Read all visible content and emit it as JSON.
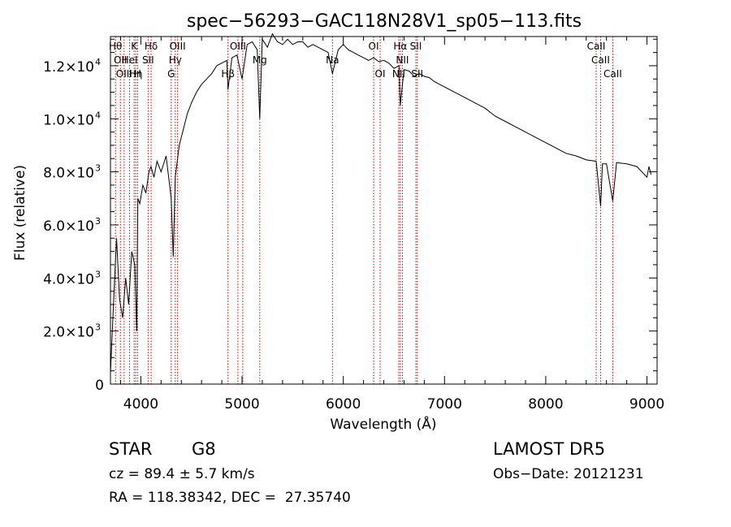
{
  "chart_data": {
    "type": "line",
    "title": "spec−56293−GAC118N28V1_sp05−113.fits",
    "xlabel": "Wavelength (Å)",
    "ylabel": "Flux (relative)",
    "xlim": [
      3700,
      9100
    ],
    "ylim": [
      0,
      13100
    ],
    "x_ticks": [
      {
        "value": 4000,
        "label": "4000"
      },
      {
        "value": 5000,
        "label": "5000"
      },
      {
        "value": 6000,
        "label": "6000"
      },
      {
        "value": 7000,
        "label": "7000"
      },
      {
        "value": 8000,
        "label": "8000"
      },
      {
        "value": 9000,
        "label": "9000"
      }
    ],
    "y_ticks": [
      {
        "value": 0,
        "label": "0",
        "exp": ""
      },
      {
        "value": 2000,
        "label": "2.0×10",
        "exp": "3"
      },
      {
        "value": 4000,
        "label": "4.0×10",
        "exp": "3"
      },
      {
        "value": 6000,
        "label": "6.0×10",
        "exp": "3"
      },
      {
        "value": 8000,
        "label": "8.0×10",
        "exp": "3"
      },
      {
        "value": 10000,
        "label": "1.0×10",
        "exp": "4"
      },
      {
        "value": 12000,
        "label": "1.2×10",
        "exp": "4"
      }
    ],
    "spectrum": {
      "x": [
        3700,
        3730,
        3760,
        3790,
        3820,
        3850,
        3880,
        3910,
        3940,
        3960,
        3970,
        3990,
        4020,
        4050,
        4080,
        4100,
        4130,
        4160,
        4200,
        4250,
        4300,
        4320,
        4340,
        4380,
        4420,
        4460,
        4500,
        4550,
        4600,
        4650,
        4700,
        4750,
        4800,
        4850,
        4861,
        4900,
        4950,
        5000,
        5050,
        5100,
        5150,
        5175,
        5200,
        5250,
        5300,
        5350,
        5400,
        5450,
        5500,
        5550,
        5600,
        5650,
        5700,
        5750,
        5800,
        5850,
        5893,
        5950,
        6000,
        6050,
        6100,
        6150,
        6200,
        6250,
        6300,
        6350,
        6400,
        6450,
        6500,
        6550,
        6563,
        6600,
        6650,
        6700,
        6750,
        6800,
        6850,
        6900,
        6950,
        7000,
        7100,
        7200,
        7300,
        7400,
        7500,
        7600,
        7700,
        7800,
        7900,
        8000,
        8100,
        8200,
        8300,
        8400,
        8498,
        8542,
        8560,
        8600,
        8662,
        8700,
        8800,
        8900,
        9000,
        9020,
        9040
      ],
      "y": [
        400,
        3000,
        5500,
        3200,
        2500,
        4000,
        3000,
        5000,
        4500,
        2000,
        7000,
        6800,
        7500,
        7200,
        8000,
        8200,
        7800,
        8400,
        8000,
        8600,
        7000,
        4800,
        7800,
        9000,
        9600,
        10200,
        10600,
        11000,
        11300,
        11500,
        11700,
        12000,
        12100,
        12200,
        11100,
        12300,
        12400,
        11500,
        12800,
        12900,
        12600,
        10000,
        13000,
        12700,
        13200,
        12900,
        12800,
        13000,
        12800,
        12900,
        12900,
        12700,
        12800,
        12700,
        12600,
        12500,
        11700,
        12600,
        12800,
        12600,
        12500,
        12400,
        12300,
        12200,
        12300,
        12150,
        12200,
        12100,
        11900,
        12000,
        10500,
        11850,
        11800,
        11600,
        11700,
        11600,
        11550,
        11400,
        11300,
        11200,
        11000,
        10800,
        10600,
        10400,
        10100,
        9900,
        9700,
        9500,
        9300,
        9100,
        8900,
        8700,
        8600,
        8450,
        8400,
        6700,
        8300,
        8300,
        6900,
        8350,
        8300,
        8200,
        7800,
        8200,
        7900
      ]
    },
    "lines": [
      {
        "x": 3750,
        "row": 1,
        "label": "Hθ"
      },
      {
        "x": 3798,
        "row": 2,
        "label": "OII"
      },
      {
        "x": 3835,
        "row": 3,
        "label": "OIII"
      },
      {
        "x": 3889,
        "row": 2,
        "label": "HeI"
      },
      {
        "x": 3934,
        "row": 1,
        "label": "K"
      },
      {
        "x": 3950,
        "row": 3,
        "label": "Hη"
      },
      {
        "x": 3968,
        "row": 3,
        "label": "H"
      },
      {
        "x": 4072,
        "row": 2,
        "label": "SII"
      },
      {
        "x": 4102,
        "row": 1,
        "label": "Hδ"
      },
      {
        "x": 4300,
        "row": 3,
        "label": "G"
      },
      {
        "x": 4340,
        "row": 2,
        "label": "Hγ"
      },
      {
        "x": 4363,
        "row": 1,
        "label": "OIII"
      },
      {
        "x": 4861,
        "row": 3,
        "label": "Hβ"
      },
      {
        "x": 4959,
        "row": 1,
        "label": "OIII"
      },
      {
        "x": 5007,
        "row": 1,
        "label": ""
      },
      {
        "x": 5175,
        "row": 2,
        "label": "Mg"
      },
      {
        "x": 5893,
        "row": 2,
        "label": "Na"
      },
      {
        "x": 6300,
        "row": 1,
        "label": "OI"
      },
      {
        "x": 6364,
        "row": 3,
        "label": "OI"
      },
      {
        "x": 6548,
        "row": 3,
        "label": "NII"
      },
      {
        "x": 6563,
        "row": 1,
        "label": "Hα"
      },
      {
        "x": 6584,
        "row": 2,
        "label": "NII"
      },
      {
        "x": 6717,
        "row": 1,
        "label": "SII"
      },
      {
        "x": 6731,
        "row": 3,
        "label": "SII"
      },
      {
        "x": 8498,
        "row": 1,
        "label": "CaII"
      },
      {
        "x": 8542,
        "row": 2,
        "label": "CaII"
      },
      {
        "x": 8662,
        "row": 3,
        "label": "CaII"
      }
    ]
  },
  "info": {
    "object_class": "STAR",
    "subclass": "G8",
    "redshift": "cz = 89.4 ± 5.7 km/s",
    "coords": "RA = 118.38342, DEC =  27.35740",
    "survey": "LAMOST DR5",
    "obs_date": "Obs−Date: 20121231"
  },
  "colors": {
    "spectrum": "#000000",
    "line_markers": "#cc0000",
    "axes": "#000000"
  }
}
